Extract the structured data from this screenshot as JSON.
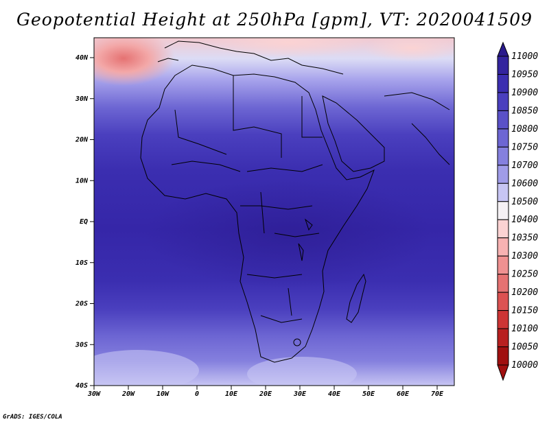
{
  "title": "Geopotential Height at 250hPa [gpm], VT: 2020041509",
  "credit": "GrADS: IGES/COLA",
  "lat_labels": [
    "40N",
    "30N",
    "20N",
    "10N",
    "EQ",
    "10S",
    "20S",
    "30S",
    "40S"
  ],
  "lon_labels": [
    "30W",
    "20W",
    "10W",
    "0",
    "10E",
    "20E",
    "30E",
    "40E",
    "50E",
    "60E",
    "70E"
  ],
  "colorbar": {
    "levels": [
      "11000",
      "10950",
      "10900",
      "10850",
      "10800",
      "10750",
      "10700",
      "10600",
      "10500",
      "10400",
      "10350",
      "10300",
      "10250",
      "10200",
      "10150",
      "10100",
      "10050",
      "10000"
    ],
    "colors": [
      "#2a1a8c",
      "#33249e",
      "#3b2eb0",
      "#4a3fbe",
      "#5a51c8",
      "#6d66d3",
      "#8580de",
      "#a09ce8",
      "#c7c5f3",
      "#f5f1f4",
      "#fbd3d3",
      "#f7b2b2",
      "#ef9191",
      "#e57272",
      "#dc5252",
      "#cd3535",
      "#b82020",
      "#a01010"
    ]
  }
}
